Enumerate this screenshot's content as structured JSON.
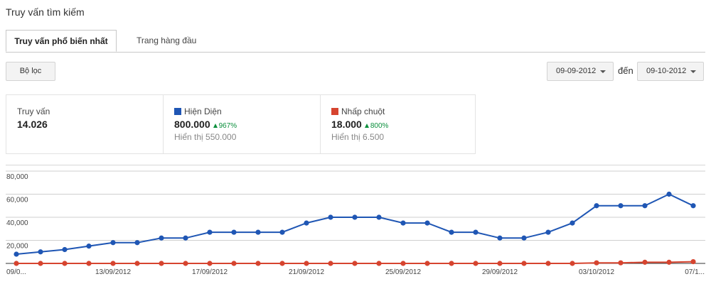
{
  "page": {
    "title": "Truy vấn tìm kiếm"
  },
  "tabs": [
    {
      "label": "Truy vấn phổ biến nhất",
      "active": true
    },
    {
      "label": "Trang hàng đầu",
      "active": false
    }
  ],
  "toolbar": {
    "filter_label": "Bộ lọc",
    "date_start": "09-09-2012",
    "date_separator": "đến",
    "date_end": "09-10-2012"
  },
  "stats": {
    "queries": {
      "label": "Truy vấn",
      "value": "14.026"
    },
    "impressions": {
      "label": "Hiện Diện",
      "value": "800.000",
      "change": "967%",
      "sub": "Hiển thị 550.000",
      "color": "#1f56b4"
    },
    "clicks": {
      "label": "Nhấp chuột",
      "value": "18.000",
      "change": "800%",
      "sub": "Hiển thị 6.500",
      "color": "#d6442f"
    }
  },
  "chart_data": {
    "type": "line",
    "x": [
      "09/09/2012",
      "10/09/2012",
      "11/09/2012",
      "12/09/2012",
      "13/09/2012",
      "14/09/2012",
      "15/09/2012",
      "16/09/2012",
      "17/09/2012",
      "18/09/2012",
      "19/09/2012",
      "20/09/2012",
      "21/09/2012",
      "22/09/2012",
      "23/09/2012",
      "24/09/2012",
      "25/09/2012",
      "26/09/2012",
      "27/09/2012",
      "28/09/2012",
      "29/09/2012",
      "30/09/2012",
      "01/10/2012",
      "02/10/2012",
      "03/10/2012",
      "04/10/2012",
      "05/10/2012",
      "06/10/2012",
      "07/10/2012"
    ],
    "x_tick_labels": [
      "09/0...",
      "13/09/2012",
      "17/09/2012",
      "21/09/2012",
      "25/09/2012",
      "29/09/2012",
      "03/10/2012",
      "07/1..."
    ],
    "x_tick_indices": [
      0,
      4,
      8,
      12,
      16,
      20,
      24,
      28
    ],
    "series": [
      {
        "name": "Hiện Diện",
        "color": "#1f56b4",
        "values": [
          8000,
          10000,
          12000,
          15000,
          18000,
          18000,
          22000,
          22000,
          27000,
          27000,
          27000,
          27000,
          35000,
          40000,
          40000,
          40000,
          35000,
          35000,
          27000,
          27000,
          22000,
          22000,
          27000,
          35000,
          50000,
          50000,
          50000,
          60000,
          50000
        ]
      },
      {
        "name": "Nhấp chuột",
        "color": "#d6442f",
        "values": [
          0,
          0,
          0,
          0,
          0,
          0,
          0,
          0,
          0,
          0,
          0,
          0,
          0,
          0,
          0,
          0,
          0,
          0,
          0,
          0,
          0,
          0,
          0,
          0,
          500,
          500,
          1000,
          1000,
          1500
        ]
      }
    ],
    "y_tick_labels": [
      "80,000",
      "60,000",
      "40,000",
      "20,000"
    ],
    "y_ticks": [
      80000,
      60000,
      40000,
      20000
    ],
    "ylim": [
      0,
      80000
    ],
    "grid": true
  }
}
